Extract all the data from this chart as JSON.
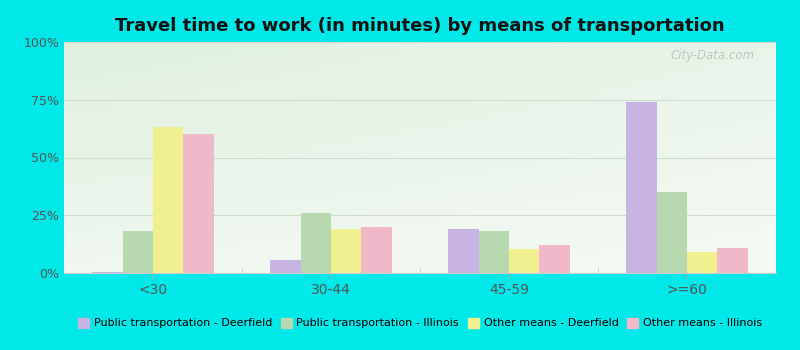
{
  "title": "Travel time to work (in minutes) by means of transportation",
  "categories": [
    "<30",
    "30-44",
    "45-59",
    ">=60"
  ],
  "series": {
    "Public transportation - Deerfield": [
      0.5,
      5.5,
      19.0,
      74.0
    ],
    "Public transportation - Illinois": [
      18.0,
      26.0,
      18.0,
      35.0
    ],
    "Other means - Deerfield": [
      63.0,
      19.0,
      10.5,
      9.0
    ],
    "Other means - Illinois": [
      60.0,
      20.0,
      12.0,
      11.0
    ]
  },
  "colors": {
    "Public transportation - Deerfield": "#c8b4e3",
    "Public transportation - Illinois": "#b8d8b0",
    "Other means - Deerfield": "#f0f090",
    "Other means - Illinois": "#f0b8c8"
  },
  "ylim": [
    0,
    100
  ],
  "yticks": [
    0,
    25,
    50,
    75,
    100
  ],
  "ytick_labels": [
    "0%",
    "25%",
    "50%",
    "75%",
    "100%"
  ],
  "outer_background": "#00e8e8",
  "title_fontsize": 13,
  "bar_width": 0.17,
  "grid_color": "#e0e8e0",
  "watermark": "City-Data.com"
}
